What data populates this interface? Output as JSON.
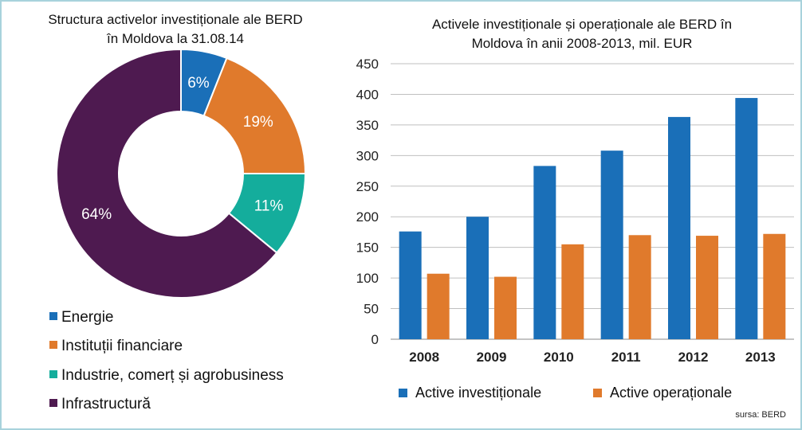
{
  "colors": {
    "energie": "#1a6fb8",
    "financiare": "#e07a2c",
    "industrie": "#14ad9c",
    "infrastructura": "#4e1a50",
    "investitionale": "#1a6fb8",
    "operationale": "#e07a2c",
    "frame": "#a8d2dc",
    "grid": "#bfbfbf"
  },
  "source": "sursa: BERD",
  "chart_data": [
    {
      "type": "pie",
      "subtype": "donut",
      "title_lines": [
        "Structura activelor investiționale ale BERD",
        "în Moldova la 31.08.14"
      ],
      "slices": [
        {
          "name": "Energie",
          "value": 6,
          "label": "6%",
          "color_key": "energie"
        },
        {
          "name": "Instituții financiare",
          "value": 19,
          "label": "19%",
          "color_key": "financiare"
        },
        {
          "name": "Industrie, comerț și agrobusiness",
          "value": 11,
          "label": "11%",
          "color_key": "industrie"
        },
        {
          "name": "Infrastructură",
          "value": 64,
          "label": "64%",
          "color_key": "infrastructura"
        }
      ],
      "legend": [
        "Energie",
        "Instituții financiare",
        "Industrie, comerț și agrobusiness",
        "Infrastructură"
      ],
      "legend_position": "bottom-left"
    },
    {
      "type": "bar",
      "title_lines": [
        "Activele investiționale și operaționale ale BERD în",
        "Moldova în anii 2008-2013, mil. EUR"
      ],
      "categories": [
        "2008",
        "2009",
        "2010",
        "2011",
        "2012",
        "2013"
      ],
      "series": [
        {
          "name": "Active investiționale",
          "values": [
            176,
            200,
            283,
            308,
            363,
            394
          ],
          "color_key": "investitionale"
        },
        {
          "name": "Active operaționale",
          "values": [
            107,
            102,
            155,
            170,
            169,
            172
          ],
          "color_key": "operationale"
        }
      ],
      "ylim": [
        0,
        450
      ],
      "yticks": [
        "0",
        "50",
        "100",
        "150",
        "200",
        "250",
        "300",
        "350",
        "400",
        "450"
      ],
      "ytick_values": [
        0,
        50,
        100,
        150,
        200,
        250,
        300,
        350,
        400,
        450
      ],
      "grid": true,
      "xlabel": "",
      "ylabel": "",
      "legend_position": "bottom"
    }
  ]
}
